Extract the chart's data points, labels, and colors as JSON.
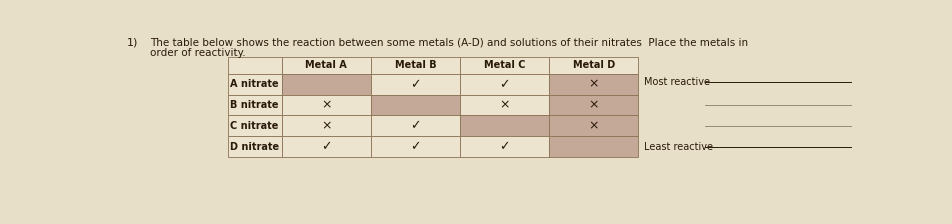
{
  "title_number": "1)",
  "title_text": "The table below shows the reaction between some metals (A-D) and solutions of their nitrates  Place the metals in\norder of reactivity.",
  "col_headers": [
    "Metal A",
    "Metal B",
    "Metal C",
    "Metal D"
  ],
  "row_headers": [
    "A nitrate",
    "B nitrate",
    "C nitrate",
    "D nitrate"
  ],
  "most_reactive_label": "Most reactive",
  "least_reactive_label": "Least reactive",
  "cell_contents": [
    [
      "",
      "✓",
      "✓",
      "×"
    ],
    [
      "×",
      "",
      "×",
      "×"
    ],
    [
      "×",
      "✓",
      "",
      "×"
    ],
    [
      "✓",
      "✓",
      "✓",
      ""
    ]
  ],
  "cell_shaded": [
    [
      true,
      false,
      false,
      true
    ],
    [
      false,
      true,
      false,
      true
    ],
    [
      false,
      false,
      true,
      true
    ],
    [
      false,
      false,
      false,
      true
    ]
  ],
  "shade_color": "#c4a898",
  "normal_color": "#ede4d0",
  "header_bg": "#ede4d0",
  "border_color": "#8b7355",
  "text_color": "#2a1a0a",
  "bg_color": "#e8dfc8"
}
